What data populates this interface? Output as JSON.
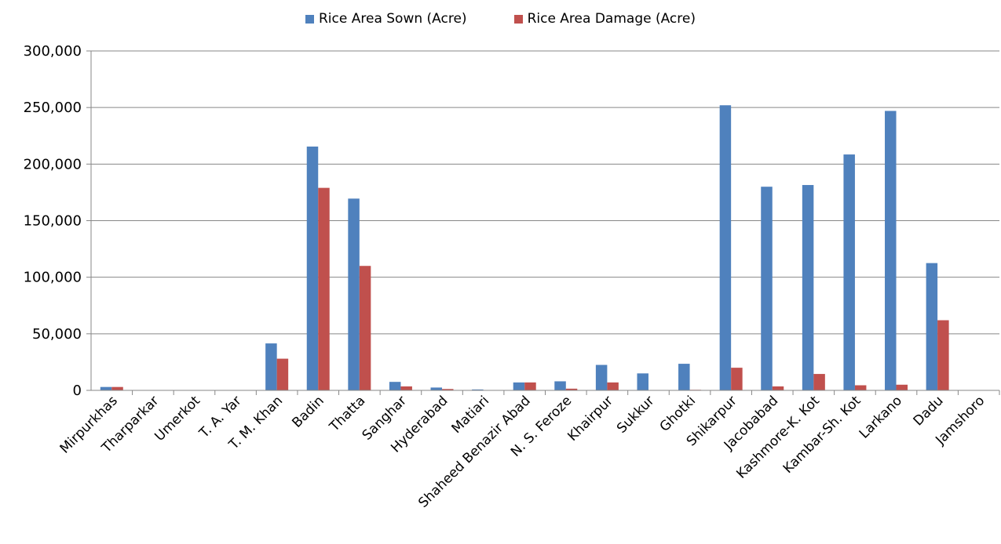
{
  "chart_data": {
    "type": "bar",
    "title": "",
    "xlabel": "",
    "ylabel": "",
    "ylim": [
      0,
      300000
    ],
    "yticks": [
      0,
      50000,
      100000,
      150000,
      200000,
      250000,
      300000
    ],
    "ytick_labels": [
      "0",
      "50,000",
      "100,000",
      "150,000",
      "200,000",
      "250,000",
      "300,000"
    ],
    "grid": true,
    "legend_position": "top-center",
    "categories": [
      "Mirpurkhas",
      "Tharparkar",
      "Umerkot",
      "T. A. Yar",
      "T. M. Khan",
      "Badin",
      "Thatta",
      "Sanghar",
      "Hyderabad",
      "Matiari",
      "Shaheed Benazir Abad",
      "N. S. Feroze",
      "Khairpur",
      "Sukkur",
      "Ghotki",
      "Shikarpur",
      "Jacobabad",
      "Kashmore-K. Kot",
      "Kambar-Sh. Kot",
      "Larkano",
      "Dadu",
      "Jamshoro"
    ],
    "series": [
      {
        "name": "Rice Area Sown (Acre)",
        "color": "#4f81bd",
        "values": [
          3000,
          0,
          0,
          0,
          41500,
          215500,
          169500,
          7500,
          2500,
          800,
          7000,
          8000,
          22500,
          15000,
          23500,
          252000,
          180000,
          181500,
          208500,
          247000,
          112500,
          0
        ]
      },
      {
        "name": "Rice Area Damage (Acre)",
        "color": "#c0504d",
        "values": [
          3000,
          0,
          0,
          0,
          28000,
          179000,
          110000,
          3500,
          1200,
          0,
          7000,
          1500,
          7000,
          0,
          500,
          20000,
          3500,
          14500,
          4500,
          5000,
          62000,
          0
        ]
      }
    ]
  }
}
